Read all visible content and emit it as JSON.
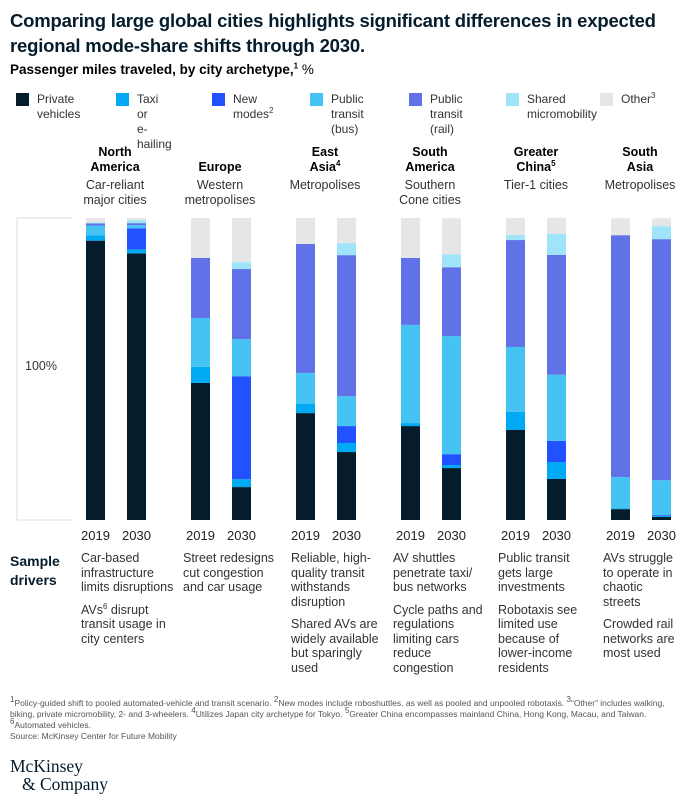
{
  "title": "Comparing large global cities highlights significant differences in expected regional mode-share shifts through 2030.",
  "subtitle": {
    "text": "Passenger miles traveled, by city archetype,",
    "sup": "1",
    "unit": "%"
  },
  "legend": [
    {
      "key": "private",
      "line1": "Private",
      "line2": "vehicles",
      "sup": "",
      "color": "#051c2c"
    },
    {
      "key": "taxi",
      "line1": "Taxi or",
      "line2": "e-hailing",
      "sup": "",
      "color": "#00a9f4"
    },
    {
      "key": "new",
      "line1": "New",
      "line2": "modes",
      "sup": "2",
      "color": "#2251ff"
    },
    {
      "key": "bus",
      "line1": "Public",
      "line2": "transit (bus)",
      "sup": "",
      "color": "#45c3f3"
    },
    {
      "key": "rail",
      "line1": "Public",
      "line2": "transit (rail)",
      "sup": "",
      "color": "#6171e8"
    },
    {
      "key": "shared",
      "line1": "Shared",
      "line2": "micromobility",
      "sup": "",
      "color": "#9fe4f8"
    },
    {
      "key": "other",
      "line1": "Other",
      "line2": "",
      "sup": "3",
      "color": "#e6e6e6"
    }
  ],
  "regions": [
    {
      "name1": "North",
      "name2": "America",
      "sup": "",
      "sub": "Car-reliant major cities"
    },
    {
      "name1": "",
      "name2": "Europe",
      "sup": "",
      "sub": "Western metropolises"
    },
    {
      "name1": "East",
      "name2": "Asia",
      "sup": "4",
      "sub": "Metropolises"
    },
    {
      "name1": "South",
      "name2": "America",
      "sup": "",
      "sub": "Southern Cone cities"
    },
    {
      "name1": "Greater",
      "name2": "China",
      "sup": "5",
      "sub": "Tier-1 cities"
    },
    {
      "name1": "South",
      "name2": "Asia",
      "sup": "",
      "sub": "Metropolises"
    }
  ],
  "chart_data": {
    "type": "bar",
    "stacked": true,
    "title": "Passenger miles traveled, by city archetype, %",
    "axis_label": "100%",
    "ylim": [
      0,
      100
    ],
    "categories": [
      "North America 2019",
      "North America 2030",
      "Europe 2019",
      "Europe 2030",
      "East Asia 2019",
      "East Asia 2030",
      "South America 2019",
      "South America 2030",
      "Greater China 2019",
      "Greater China 2030",
      "South Asia 2019",
      "South Asia 2030"
    ],
    "years": [
      "2019",
      "2030"
    ],
    "series": [
      {
        "name": "Private vehicles",
        "key": "private",
        "values": [
          92.5,
          88.3,
          45.4,
          10.9,
          35.4,
          22.5,
          31.1,
          17.2,
          29.8,
          13.6,
          3.6,
          1.0
        ]
      },
      {
        "name": "Taxi or e-hailing",
        "key": "taxi",
        "values": [
          1.7,
          1.3,
          5.3,
          2.6,
          3.0,
          3.0,
          1.0,
          1.0,
          6.0,
          5.6,
          0.3,
          0.3
        ]
      },
      {
        "name": "New modes",
        "key": "new",
        "values": [
          0,
          7.0,
          0,
          34.1,
          0,
          5.6,
          0,
          3.6,
          0,
          7.0,
          0,
          0.3
        ]
      },
      {
        "name": "Public transit (bus)",
        "key": "bus",
        "values": [
          3.3,
          1.0,
          16.2,
          12.3,
          10.3,
          9.9,
          32.5,
          39.1,
          21.5,
          21.9,
          10.3,
          11.6
        ]
      },
      {
        "name": "Public transit (rail)",
        "key": "rail",
        "values": [
          0.7,
          0.7,
          19.9,
          23.2,
          42.7,
          46.7,
          22.2,
          22.8,
          35.4,
          39.7,
          80.1,
          79.8
        ]
      },
      {
        "name": "Shared micromobility",
        "key": "shared",
        "values": [
          0.3,
          1.0,
          0,
          2.3,
          0,
          4.0,
          0,
          4.3,
          1.7,
          7.0,
          0,
          4.3
        ]
      },
      {
        "name": "Other",
        "key": "other",
        "values": [
          1.5,
          0.7,
          13.2,
          14.6,
          8.6,
          8.3,
          13.2,
          11.9,
          5.6,
          5.3,
          5.6,
          2.6
        ]
      }
    ]
  },
  "drivers": {
    "title1": "Sample",
    "title2": "drivers",
    "items": [
      {
        "p1": "Car-based infrastructure limits disruptions",
        "p2a": "AVs",
        "p2sup": "6",
        "p2b": " disrupt transit usage in city centers"
      },
      {
        "p1": "Street redesigns cut congestion and car usage",
        "p2a": "",
        "p2sup": "",
        "p2b": ""
      },
      {
        "p1": "Reliable, high-quality transit withstands disruption",
        "p2a": "Shared AVs are widely available but sparingly used",
        "p2sup": "",
        "p2b": ""
      },
      {
        "p1": "AV shuttles penetrate taxi/ bus networks",
        "p2a": "Cycle paths and regulations limiting cars reduce congestion",
        "p2sup": "",
        "p2b": ""
      },
      {
        "p1": "Public transit gets large investments",
        "p2a": "Robotaxis see limited use because of lower-income residents",
        "p2sup": "",
        "p2b": ""
      },
      {
        "p1": "AVs struggle to operate in chaotic streets",
        "p2a": "Crowded rail networks are most used",
        "p2sup": "",
        "p2b": ""
      }
    ]
  },
  "footnotes": {
    "f1": "Policy-guided shift to pooled automated-vehicle and transit scenario. ",
    "f2": "New modes include roboshuttles, as well as pooled and unpooled robotaxis. ",
    "f3": "“Other” includes walking, biking, private micromobility, 2- and 3-wheelers. ",
    "f4": "Utilizes Japan city archetype for Tokyo. ",
    "f5": "Greater China encompasses mainland China, Hong Kong, Macau, and Taiwan. ",
    "f6": "Automated vehicles.",
    "source": "Source: McKinsey Center for Future Mobility"
  },
  "logo": {
    "line1": "McKinsey",
    "line2": "& Company"
  }
}
